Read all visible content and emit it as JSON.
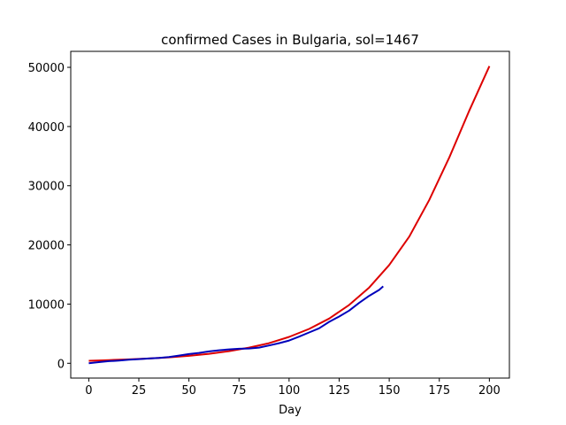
{
  "chart_data": {
    "type": "line",
    "title": "confirmed Cases in Bulgaria, sol=1467",
    "xlabel": "Day",
    "ylabel": "",
    "xlim": [
      -9,
      210
    ],
    "ylim": [
      -2500,
      52700
    ],
    "xticks": [
      0,
      25,
      50,
      75,
      100,
      125,
      150,
      175,
      200
    ],
    "yticks": [
      0,
      10000,
      20000,
      30000,
      40000,
      50000
    ],
    "grid": false,
    "legend": "none",
    "series": [
      {
        "color": "#dd0000",
        "x": [
          0,
          10,
          20,
          30,
          40,
          50,
          60,
          70,
          80,
          90,
          100,
          110,
          120,
          130,
          140,
          150,
          160,
          170,
          180,
          190,
          200
        ],
        "y": [
          420,
          530,
          650,
          800,
          1000,
          1250,
          1600,
          2050,
          2650,
          3400,
          4450,
          5800,
          7550,
          9850,
          12800,
          16600,
          21400,
          27600,
          34800,
          42700,
          50200
        ]
      },
      {
        "color": "#0000bb",
        "x": [
          0,
          5,
          10,
          15,
          20,
          25,
          30,
          35,
          40,
          45,
          50,
          55,
          60,
          65,
          70,
          75,
          80,
          85,
          90,
          95,
          100,
          105,
          110,
          115,
          120,
          125,
          130,
          135,
          140,
          145,
          147
        ],
        "y": [
          0,
          200,
          350,
          450,
          600,
          700,
          800,
          900,
          1050,
          1300,
          1550,
          1750,
          2000,
          2200,
          2350,
          2450,
          2500,
          2650,
          3000,
          3400,
          3850,
          4500,
          5200,
          5900,
          7000,
          7900,
          8900,
          10200,
          11400,
          12400,
          13000
        ]
      }
    ]
  }
}
